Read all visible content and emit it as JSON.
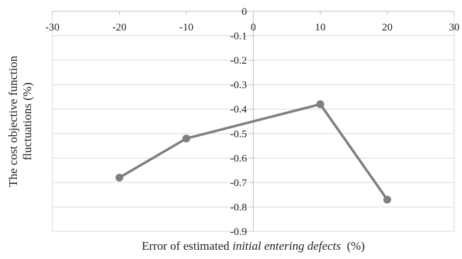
{
  "chart_data": {
    "type": "line",
    "title": "",
    "xlabel_parts": [
      {
        "text": "Error of estimated ",
        "italic": false
      },
      {
        "text": "initial entering defects",
        "italic": true
      },
      {
        "text": "  (%)",
        "italic": false
      }
    ],
    "ylabel_lines": [
      "The cost objective function",
      "fluctuations (%)"
    ],
    "xlim": [
      -30,
      30
    ],
    "ylim": [
      -0.9,
      0
    ],
    "xticks": [
      -30,
      -20,
      -10,
      0,
      10,
      20,
      30
    ],
    "xtick_labels": [
      "-30",
      "-20",
      "-10",
      "0",
      "10",
      "20",
      "30"
    ],
    "yticks": [
      0,
      -0.1,
      -0.2,
      -0.3,
      -0.4,
      -0.5,
      -0.6,
      -0.7,
      -0.8,
      -0.9
    ],
    "ytick_labels": [
      "0",
      "-0.1",
      "-0.2",
      "-0.3",
      "-0.4",
      "-0.5",
      "-0.6",
      "-0.7",
      "-0.8",
      "-0.9"
    ],
    "grid": "horizontal",
    "x_axis_position": "top",
    "y_axis_position": "x=0",
    "series": [
      {
        "x": [
          -20,
          -10,
          10,
          20
        ],
        "y": [
          -0.68,
          -0.52,
          -0.38,
          -0.77
        ],
        "color": "#7f7f7f",
        "marker": "circle"
      }
    ]
  },
  "colors": {
    "series": "#7f7f7f",
    "grid": "#d9d9d9",
    "axis": "#bfbfbf"
  }
}
